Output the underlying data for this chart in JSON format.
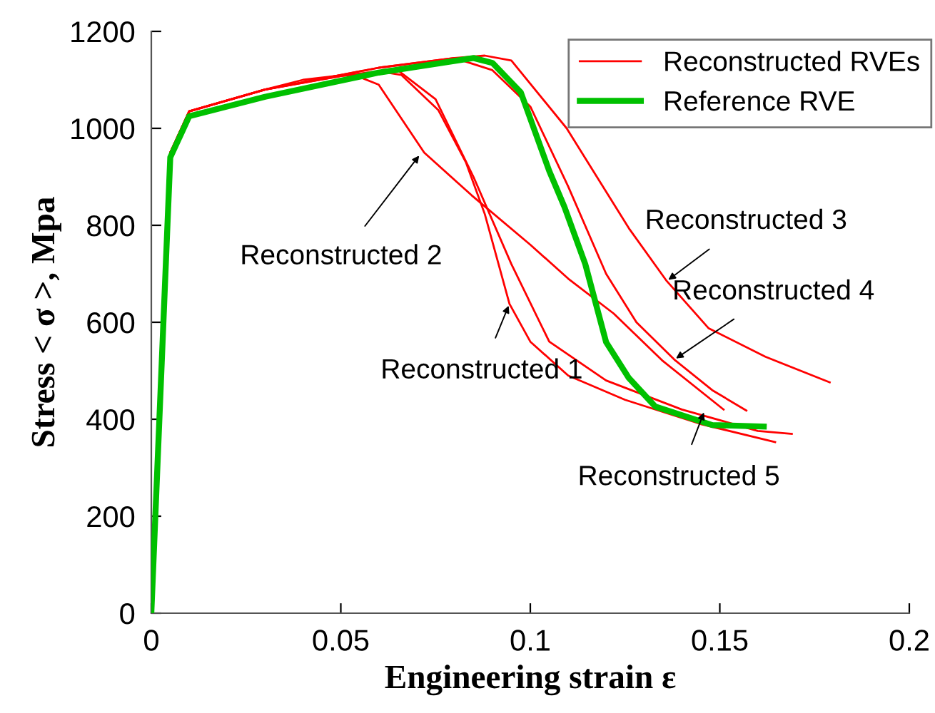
{
  "chart_data": {
    "type": "line",
    "xlabel": "Engineering strain ε",
    "ylabel": "Stress < σ >, Mpa",
    "xlim": [
      0,
      0.2
    ],
    "ylim": [
      0,
      1200
    ],
    "xticks": [
      0,
      0.05,
      0.1,
      0.15,
      0.2
    ],
    "yticks": [
      0,
      200,
      400,
      600,
      800,
      1000,
      1200
    ],
    "grid": false,
    "legend": "top right",
    "line_style": "solid",
    "marker": "none",
    "series": [
      {
        "name": "Reconstructed RVEs",
        "color": "#ff0000",
        "x": [
          0,
          0.005,
          0.01,
          0.03,
          0.05,
          0.06,
          0.066,
          0.0757,
          0.083,
          0.088,
          0.0945,
          0.1,
          0.11,
          0.125,
          0.145,
          0.1646
        ],
        "values": [
          0,
          950,
          1035,
          1080,
          1108,
          1118,
          1110,
          1038,
          930,
          823,
          638,
          560,
          490,
          440,
          390,
          353
        ]
      },
      {
        "color": "#ff0000",
        "x": [
          0,
          0.005,
          0.01,
          0.03,
          0.05,
          0.065,
          0.075,
          0.085,
          0.095,
          0.105,
          0.12,
          0.14,
          0.16,
          0.169
        ],
        "values": [
          0,
          950,
          1035,
          1080,
          1108,
          1120,
          1060,
          900,
          720,
          560,
          480,
          420,
          376,
          370
        ]
      },
      {
        "color": "#ff0000",
        "x": [
          0,
          0.005,
          0.01,
          0.03,
          0.04,
          0.053,
          0.06,
          0.072,
          0.0845,
          0.1,
          0.11,
          0.122,
          0.135,
          0.151
        ],
        "values": [
          0,
          950,
          1035,
          1080,
          1100,
          1112,
          1090,
          950,
          862,
          760,
          690,
          618,
          520,
          420
        ]
      },
      {
        "color": "#ff0000",
        "x": [
          0,
          0.005,
          0.01,
          0.03,
          0.06,
          0.08,
          0.088,
          0.095,
          0.1096,
          0.126,
          0.136,
          0.147,
          0.162,
          0.179
        ],
        "values": [
          0,
          950,
          1035,
          1080,
          1125,
          1145,
          1150,
          1140,
          1000,
          794,
          685,
          588,
          529,
          476
        ]
      },
      {
        "color": "#ff0000",
        "x": [
          0,
          0.005,
          0.01,
          0.03,
          0.06,
          0.08,
          0.09,
          0.1,
          0.11,
          0.12,
          0.128,
          0.138,
          0.148,
          0.157
        ],
        "values": [
          0,
          950,
          1035,
          1080,
          1125,
          1145,
          1120,
          1045,
          880,
          700,
          600,
          523,
          460,
          418
        ]
      },
      {
        "name": "Reference RVE",
        "color": "#00c000",
        "x": [
          0,
          0.005,
          0.01,
          0.03,
          0.06,
          0.085,
          0.09,
          0.0975,
          0.105,
          0.109,
          0.1145,
          0.12,
          0.126,
          0.133,
          0.148,
          0.1616
        ],
        "values": [
          0,
          940,
          1025,
          1065,
          1115,
          1145,
          1135,
          1074,
          912,
          838,
          720,
          559,
          485,
          426,
          388,
          385
        ]
      }
    ],
    "annotations": [
      {
        "text": "Reconstructed 2",
        "x": 0.071,
        "y": 947
      },
      {
        "text": "Reconstructed 3",
        "x": 0.136,
        "y": 685
      },
      {
        "text": "Reconstructed 4",
        "x": 0.138,
        "y": 523
      },
      {
        "text": "Reconstructed 1",
        "x": 0.0945,
        "y": 638
      },
      {
        "text": "Reconstructed 5",
        "x": 0.146,
        "y": 418
      }
    ]
  }
}
